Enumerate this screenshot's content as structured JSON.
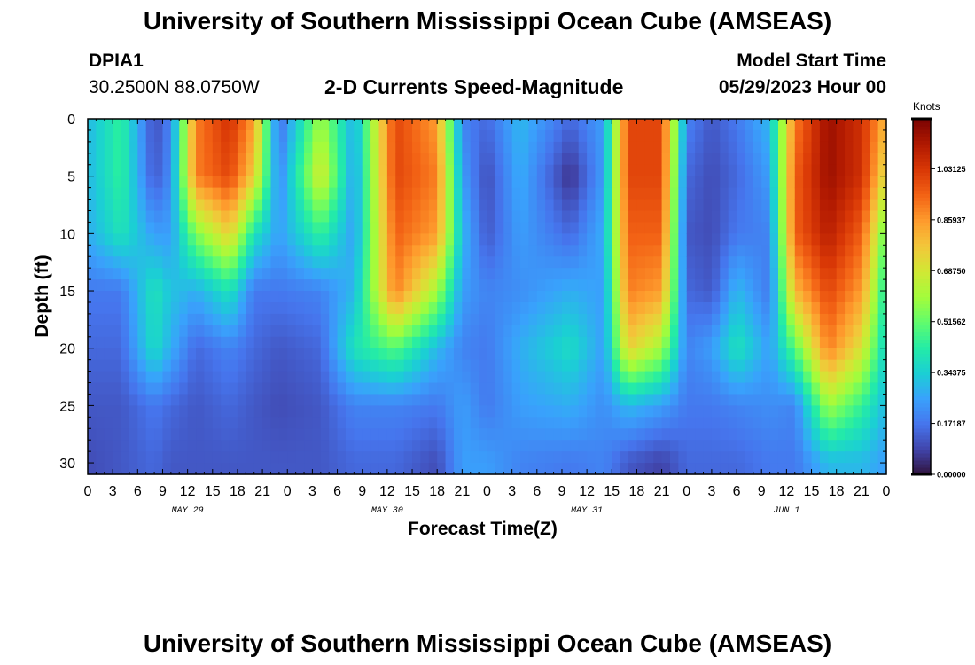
{
  "page": {
    "title": "University of Southern Mississippi Ocean Cube (AMSEAS)",
    "station_id": "DPIA1",
    "station_coords": "30.2500N  88.0750W",
    "plot_title": "2-D Currents Speed-Magnitude",
    "model_start_label": "Model Start Time",
    "model_start_value": "05/29/2023 Hour 00",
    "x_axis_title": "Forecast Time(Z)",
    "y_axis_title": "Depth (ft)",
    "colorbar_unit": "Knots",
    "footer_title": "University of Southern Mississippi Ocean Cube (AMSEAS)"
  },
  "chart_data": {
    "type": "heatmap",
    "title": "2-D Currents Speed-Magnitude",
    "xlabel": "Forecast Time(Z)",
    "ylabel": "Depth (ft)",
    "x_range_hours": [
      0,
      96
    ],
    "y_range_ft": [
      0,
      31
    ],
    "x_tick_labels": [
      "0",
      "3",
      "6",
      "9",
      "12",
      "15",
      "18",
      "21",
      "0",
      "3",
      "6",
      "9",
      "12",
      "15",
      "18",
      "21",
      "0",
      "3",
      "6",
      "9",
      "12",
      "15",
      "18",
      "21",
      "0",
      "3",
      "6",
      "9",
      "12",
      "15",
      "18",
      "21",
      "0"
    ],
    "y_ticks": [
      0,
      5,
      10,
      15,
      20,
      25,
      30
    ],
    "date_labels": [
      {
        "label": "MAY 29",
        "hour": 12
      },
      {
        "label": "MAY 30",
        "hour": 36
      },
      {
        "label": "MAY 31",
        "hour": 60
      },
      {
        "label": "JUN 1",
        "hour": 84
      }
    ],
    "colorbar": {
      "unit": "Knots",
      "range": [
        0,
        1.2
      ],
      "tick_values": [
        0.0,
        0.17187,
        0.34375,
        0.51562,
        0.6875,
        0.85937,
        1.03125
      ],
      "tick_labels": [
        "0.00000",
        "0.17187",
        "0.34375",
        "0.51562",
        "0.68750",
        "0.85937",
        "1.03125"
      ]
    },
    "sample_depths_ft": [
      0,
      5,
      10,
      15,
      20,
      25,
      30
    ],
    "samples": [
      {
        "hour": 0,
        "speeds": [
          0.3,
          0.3,
          0.28,
          0.18,
          0.15,
          0.12,
          0.1
        ]
      },
      {
        "hour": 4,
        "speeds": [
          0.45,
          0.45,
          0.4,
          0.18,
          0.15,
          0.12,
          0.12
        ]
      },
      {
        "hour": 8,
        "speeds": [
          0.1,
          0.12,
          0.25,
          0.4,
          0.38,
          0.18,
          0.15
        ]
      },
      {
        "hour": 10,
        "speeds": [
          0.2,
          0.22,
          0.25,
          0.32,
          0.28,
          0.15,
          0.12
        ]
      },
      {
        "hour": 13,
        "speeds": [
          0.9,
          0.9,
          0.55,
          0.28,
          0.15,
          0.12,
          0.12
        ]
      },
      {
        "hour": 17,
        "speeds": [
          1.05,
          1.0,
          0.75,
          0.4,
          0.2,
          0.15,
          0.12
        ]
      },
      {
        "hour": 20,
        "speeds": [
          0.85,
          0.75,
          0.4,
          0.18,
          0.15,
          0.12,
          0.12
        ]
      },
      {
        "hour": 23,
        "speeds": [
          0.15,
          0.2,
          0.25,
          0.18,
          0.12,
          0.1,
          0.12
        ]
      },
      {
        "hour": 28,
        "speeds": [
          0.6,
          0.7,
          0.45,
          0.2,
          0.15,
          0.12,
          0.12
        ]
      },
      {
        "hour": 32,
        "speeds": [
          0.28,
          0.25,
          0.25,
          0.3,
          0.4,
          0.2,
          0.15
        ]
      },
      {
        "hour": 37,
        "speeds": [
          1.0,
          1.0,
          0.95,
          0.9,
          0.5,
          0.2,
          0.15
        ]
      },
      {
        "hour": 42,
        "speeds": [
          0.85,
          0.9,
          0.85,
          0.6,
          0.3,
          0.18,
          0.1
        ]
      },
      {
        "hour": 45,
        "speeds": [
          0.2,
          0.25,
          0.3,
          0.25,
          0.2,
          0.25,
          0.25
        ]
      },
      {
        "hour": 48,
        "speeds": [
          0.15,
          0.1,
          0.12,
          0.2,
          0.18,
          0.18,
          0.25
        ]
      },
      {
        "hour": 52,
        "speeds": [
          0.3,
          0.28,
          0.25,
          0.22,
          0.28,
          0.25,
          0.2
        ]
      },
      {
        "hour": 58,
        "speeds": [
          0.15,
          0.05,
          0.15,
          0.28,
          0.38,
          0.28,
          0.18
        ]
      },
      {
        "hour": 62,
        "speeds": [
          0.25,
          0.25,
          0.28,
          0.25,
          0.25,
          0.22,
          0.2
        ]
      },
      {
        "hour": 65,
        "speeds": [
          1.0,
          1.0,
          0.95,
          0.9,
          0.75,
          0.3,
          0.12
        ]
      },
      {
        "hour": 69,
        "speeds": [
          1.0,
          1.0,
          0.95,
          0.85,
          0.6,
          0.25,
          0.08
        ]
      },
      {
        "hour": 72,
        "speeds": [
          0.2,
          0.15,
          0.12,
          0.15,
          0.2,
          0.18,
          0.15
        ]
      },
      {
        "hour": 75,
        "speeds": [
          0.12,
          0.1,
          0.1,
          0.12,
          0.25,
          0.18,
          0.15
        ]
      },
      {
        "hour": 78,
        "speeds": [
          0.18,
          0.15,
          0.18,
          0.3,
          0.4,
          0.2,
          0.15
        ]
      },
      {
        "hour": 82,
        "speeds": [
          0.3,
          0.25,
          0.2,
          0.18,
          0.25,
          0.22,
          0.18
        ]
      },
      {
        "hour": 85,
        "speeds": [
          0.9,
          0.95,
          0.95,
          0.8,
          0.5,
          0.2,
          0.18
        ]
      },
      {
        "hour": 89,
        "speeds": [
          1.15,
          1.15,
          1.1,
          1.0,
          0.9,
          0.6,
          0.3
        ]
      },
      {
        "hour": 93,
        "speeds": [
          1.05,
          1.05,
          0.95,
          0.85,
          0.7,
          0.45,
          0.3
        ]
      },
      {
        "hour": 96,
        "speeds": [
          0.8,
          0.7,
          0.5,
          0.4,
          0.35,
          0.3,
          0.25
        ]
      }
    ]
  },
  "colors": {
    "colormap": [
      "#30123b",
      "#4145ab",
      "#4675ed",
      "#39a2fc",
      "#1bcfd4",
      "#24eca6",
      "#61fc6c",
      "#a4fc3b",
      "#d1e834",
      "#f3c63a",
      "#fe9b2d",
      "#f36315",
      "#d93806",
      "#b11901",
      "#7a0402"
    ]
  }
}
